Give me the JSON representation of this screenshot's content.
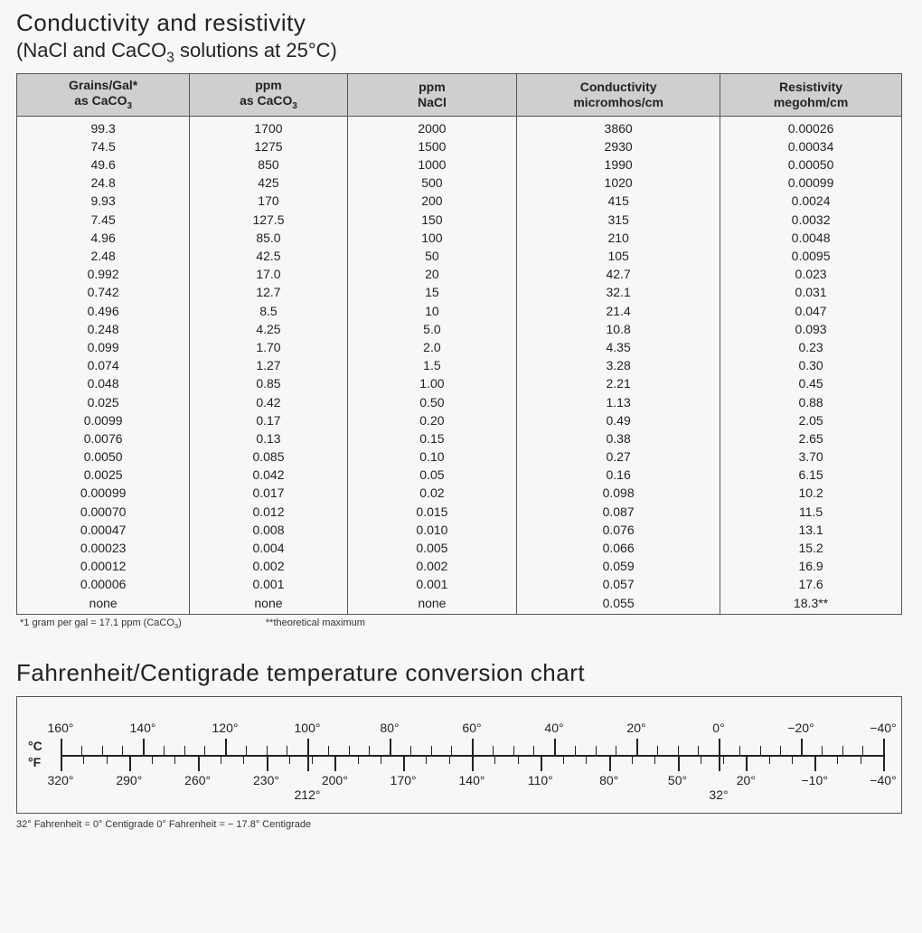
{
  "section1": {
    "title": "Conductivity and resistivity",
    "subtitle_html": "(NaCl and CaCO<sub>3</sub> solutions at 25°C)",
    "headers": [
      "Grains/Gal*<br>as CaCO<sub>3</sub>",
      "ppm<br>as CaCO<sub>3</sub>",
      "ppm<br>NaCl",
      "Conductivity<br>micromhos/cm",
      "Resistivity<br>megohm/cm"
    ],
    "rows": [
      [
        "99.3",
        "1700",
        "2000",
        "3860",
        "0.00026"
      ],
      [
        "74.5",
        "1275",
        "1500",
        "2930",
        "0.00034"
      ],
      [
        "49.6",
        "850",
        "1000",
        "1990",
        "0.00050"
      ],
      [
        "24.8",
        "425",
        "500",
        "1020",
        "0.00099"
      ],
      [
        "9.93",
        "170",
        "200",
        "415",
        "0.0024"
      ],
      [
        "7.45",
        "127.5",
        "150",
        "315",
        "0.0032"
      ],
      [
        "4.96",
        "85.0",
        "100",
        "210",
        "0.0048"
      ],
      [
        "2.48",
        "42.5",
        "50",
        "105",
        "0.0095"
      ],
      [
        "0.992",
        "17.0",
        "20",
        "42.7",
        "0.023"
      ],
      [
        "0.742",
        "12.7",
        "15",
        "32.1",
        "0.031"
      ],
      [
        "0.496",
        "8.5",
        "10",
        "21.4",
        "0.047"
      ],
      [
        "0.248",
        "4.25",
        "5.0",
        "10.8",
        "0.093"
      ],
      [
        "0.099",
        "1.70",
        "2.0",
        "4.35",
        "0.23"
      ],
      [
        "0.074",
        "1.27",
        "1.5",
        "3.28",
        "0.30"
      ],
      [
        "0.048",
        "0.85",
        "1.00",
        "2.21",
        "0.45"
      ],
      [
        "0.025",
        "0.42",
        "0.50",
        "1.13",
        "0.88"
      ],
      [
        "0.0099",
        "0.17",
        "0.20",
        "0.49",
        "2.05"
      ],
      [
        "0.0076",
        "0.13",
        "0.15",
        "0.38",
        "2.65"
      ],
      [
        "0.0050",
        "0.085",
        "0.10",
        "0.27",
        "3.70"
      ],
      [
        "0.0025",
        "0.042",
        "0.05",
        "0.16",
        "6.15"
      ],
      [
        "0.00099",
        "0.017",
        "0.02",
        "0.098",
        "10.2"
      ],
      [
        "0.00070",
        "0.012",
        "0.015",
        "0.087",
        "11.5"
      ],
      [
        "0.00047",
        "0.008",
        "0.010",
        "0.076",
        "13.1"
      ],
      [
        "0.00023",
        "0.004",
        "0.005",
        "0.066",
        "15.2"
      ],
      [
        "0.00012",
        "0.002",
        "0.002",
        "0.059",
        "16.9"
      ],
      [
        "0.00006",
        "0.001",
        "0.001",
        "0.057",
        "17.6"
      ],
      [
        "none",
        "none",
        "none",
        "0.055",
        "18.3**"
      ]
    ],
    "footnote_a_html": "*1 gram per gal = 17.1 ppm (CaCO<sub>3</sub>)",
    "footnote_b": "**theoretical maximum"
  },
  "section2": {
    "title": "Fahrenheit/Centigrade temperature conversion chart",
    "label_c": "°C",
    "label_f": "°F",
    "c_min": -40,
    "c_max": 160,
    "c_major_step": 20,
    "c_minor_step": 5,
    "f_min": -40,
    "f_max": 320,
    "f_major_step": 30,
    "f_minor_step": 10,
    "f_extra_labels": [
      {
        "value": 212,
        "label": "212°",
        "low": true
      },
      {
        "value": 32,
        "label": "32°",
        "low": true
      }
    ],
    "footnote": "32° Fahrenheit = 0° Centigrade    0° Fahrenheit = − 17.8° Centigrade"
  }
}
